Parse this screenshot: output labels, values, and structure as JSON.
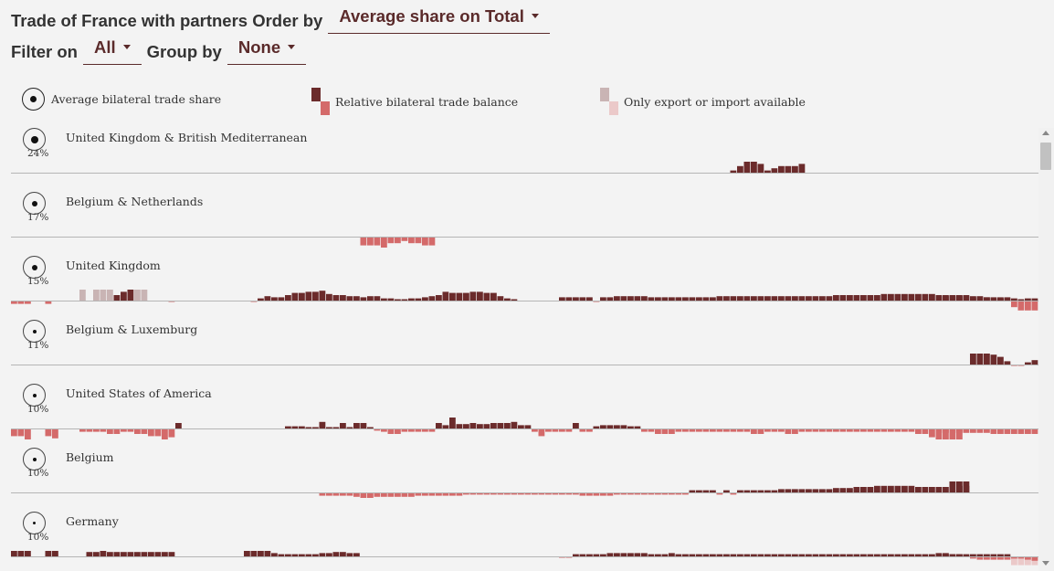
{
  "header": {
    "title": "Trade of France with partners Order by",
    "order_by": "Average share on Total",
    "filter_label": "Filter on",
    "filter_value": "All",
    "group_label": "Group by",
    "group_value": "None"
  },
  "legend": {
    "share": "Average bilateral trade share",
    "balance": "Relative bilateral trade balance",
    "partial": "Only export or import available"
  },
  "colors": {
    "positive": "#6b2b2b",
    "negative": "#d46a6a",
    "partial_pos": "#c9b4b4",
    "partial_neg": "#ebc9c9",
    "baseline": "#b5b5b5"
  },
  "chart_data": {
    "type": "bar",
    "description_of_values": "relative bilateral trade balance per year, range -1..1; null = no data; p = partial (only export or import available)",
    "ylim": [
      -1,
      1
    ],
    "partners": [
      {
        "name": "United Kingdom & British Mediterranean",
        "share": "24%",
        "dot": 8,
        "segments": [
          {
            "start": 105,
            "values": [
              0.2,
              0.6,
              1.0,
              1.0,
              0.8,
              0.2,
              0.4,
              0.6,
              0.6,
              0.6,
              0.8
            ]
          }
        ]
      },
      {
        "name": "Belgium & Netherlands",
        "share": "17%",
        "dot": 6,
        "segments": [
          {
            "start": 51,
            "values": [
              -0.8,
              -0.8,
              -0.8,
              -1.0,
              -0.6,
              -0.6,
              -0.4,
              -0.6,
              -0.6,
              -0.8,
              -0.8
            ]
          }
        ]
      },
      {
        "name": "United Kingdom",
        "share": "15%",
        "dot": 6,
        "segments": [
          {
            "start": 0,
            "values": [
              -0.3,
              -0.3,
              -0.3,
              null,
              null,
              -0.3
            ]
          },
          {
            "start": 10,
            "values": [
              {
                "v": 1.0,
                "p": true
              },
              null,
              {
                "v": 1.0,
                "p": true
              },
              {
                "v": 1.0,
                "p": true
              },
              {
                "v": 1.0,
                "p": true
              },
              0.5,
              0.8,
              1.0,
              {
                "v": 1.0,
                "p": true
              },
              {
                "v": 1.0,
                "p": true
              }
            ]
          },
          {
            "start": 23,
            "values": [
              -0.1
            ]
          },
          {
            "start": 35,
            "values": [
              -0.1,
              0.2,
              0.4,
              0.3,
              0.3,
              0.5,
              0.7,
              0.7,
              0.8,
              0.8,
              0.9,
              0.6,
              0.5,
              0.5,
              0.4,
              0.4,
              0.3,
              0.4,
              0.4,
              0.2,
              0.2,
              0.1,
              0.1,
              0.2,
              0.2,
              0.3,
              0.4,
              0.5,
              0.8,
              0.7,
              0.7,
              0.7,
              0.8,
              0.8,
              0.7,
              0.7,
              0.4,
              0.2,
              0.1
            ]
          },
          {
            "start": 80,
            "values": [
              0.3,
              0.3,
              0.3,
              0.3,
              0.3,
              -0.1,
              0.3,
              0.3,
              0.4,
              0.4,
              0.4,
              0.4,
              0.4,
              0.3,
              0.3,
              0.3,
              0.3,
              0.3,
              0.3,
              0.3,
              0.3,
              0.3,
              0.3,
              0.4,
              0.4,
              0.4,
              0.4,
              0.4,
              0.4,
              0.4,
              0.4,
              0.4,
              0.4,
              0.4,
              0.4,
              0.4,
              0.4,
              0.4,
              0.4,
              0.4,
              0.5,
              0.5,
              0.5,
              0.5,
              0.5,
              0.5,
              0.5,
              0.6,
              0.6,
              0.6,
              0.6,
              0.6,
              0.6,
              0.6,
              0.6,
              0.5,
              0.5,
              0.5,
              0.5,
              0.5,
              0.4,
              0.4,
              0.3,
              0.3,
              0.3,
              0.3,
              -0.6,
              -0.9,
              -0.9,
              -0.9,
              -0.9
            ]
          },
          {
            "start": 135,
            "values": [
              0.4,
              0.4,
              0.4,
              0.4,
              0.4,
              0.3,
              0.3,
              0.3,
              0.1,
              0.2,
              0.2,
              0.2,
              0.1,
              0.2,
              0.2,
              0.2
            ]
          }
        ]
      },
      {
        "name": "Belgium & Luxemburg",
        "share": "11%",
        "dot": 4,
        "segments": [
          {
            "start": 140,
            "values": [
              1.0,
              1.0,
              1.0,
              0.9,
              0.7,
              0.3,
              -0.1,
              -0.1,
              0.2,
              0.4,
              0.4,
              0.2
            ]
          }
        ]
      },
      {
        "name": "United States of America",
        "share": "10%",
        "dot": 4,
        "segments": [
          {
            "start": 0,
            "values": [
              -0.7,
              -0.7,
              -1.0,
              null,
              null,
              -0.7,
              -0.9
            ]
          },
          {
            "start": 10,
            "values": [
              -0.3,
              -0.3,
              -0.3,
              -0.3,
              -0.5,
              -0.5,
              -0.3,
              -0.3,
              -0.5,
              -0.5,
              -0.7,
              -0.7,
              -1.0,
              -0.8,
              0.5
            ]
          },
          {
            "start": 40,
            "values": [
              0.2,
              0.2,
              0.2,
              0.1,
              0.1,
              0.6,
              0.1,
              0.1,
              0.5,
              0.1,
              0.5,
              0.5,
              0.1,
              -0.2,
              -0.3,
              -0.5,
              -0.5,
              -0.3,
              -0.3,
              -0.3,
              -0.3,
              -0.3,
              0.5,
              0.3,
              1.0,
              0.4,
              0.4,
              0.5,
              0.4,
              0.4,
              0.5,
              0.5,
              0.5,
              0.6,
              0.3,
              0.3,
              -0.3,
              -0.7,
              -0.3,
              -0.3,
              -0.3,
              -0.3,
              0.5,
              -0.3,
              -0.3,
              0.2,
              0.3,
              0.3,
              0.3,
              0.3,
              0.2,
              0.2,
              -0.3,
              -0.3,
              -0.5,
              -0.5,
              -0.5,
              -0.3,
              -0.3,
              -0.3,
              -0.3,
              -0.3,
              -0.3,
              -0.3,
              -0.3,
              -0.3,
              -0.3,
              -0.3,
              -0.5,
              -0.5,
              -0.3,
              -0.3,
              -0.3,
              -0.5,
              -0.5,
              -0.3,
              -0.3,
              -0.3,
              -0.3,
              -0.3,
              -0.3,
              -0.3,
              -0.3,
              -0.3,
              -0.3,
              -0.3,
              -0.3,
              -0.3,
              -0.3,
              -0.3,
              -0.3,
              -0.3,
              -0.5,
              -0.5,
              -0.8,
              -1.0,
              -1.0,
              -1.0,
              -1.0
            ]
          },
          {
            "start": 135,
            "values": [
              -0.4,
              -0.4,
              -0.4,
              -0.4,
              -0.4,
              -0.4,
              -0.4,
              -0.4,
              -0.5,
              -0.5,
              -0.5,
              -0.5,
              -0.5,
              -0.5,
              -0.5,
              -0.5
            ]
          }
        ]
      },
      {
        "name": "Belgium",
        "share": "10%",
        "dot": 4,
        "segments": [
          {
            "start": 45,
            "values": [
              -0.3,
              -0.3,
              -0.3,
              -0.3,
              -0.3,
              -0.4,
              -0.5,
              -0.5,
              -0.4,
              -0.4,
              -0.4,
              -0.4,
              -0.4,
              -0.4,
              -0.3,
              -0.3,
              -0.3,
              -0.3,
              -0.3,
              -0.3,
              -0.3,
              -0.2,
              -0.2,
              -0.2,
              -0.2,
              -0.2,
              -0.2,
              -0.2,
              -0.2,
              -0.2,
              -0.2,
              -0.2,
              -0.2,
              -0.2,
              -0.2,
              -0.2,
              -0.2,
              -0.2,
              -0.3,
              -0.3,
              -0.3,
              -0.3,
              -0.3,
              -0.2,
              -0.2,
              -0.2,
              -0.2,
              -0.2,
              -0.2,
              -0.2,
              -0.2,
              -0.2,
              -0.2,
              -0.2,
              0.2,
              0.2,
              0.2,
              0.2,
              -0.2,
              0.2,
              -0.2,
              0.2,
              0.2,
              0.2,
              0.2,
              0.2,
              0.2,
              0.3,
              0.3,
              0.3,
              0.3,
              0.3,
              0.3,
              0.3,
              0.3,
              0.4,
              0.4,
              0.4,
              0.5,
              0.5,
              0.5,
              0.6,
              0.6,
              0.6,
              0.6,
              0.6,
              0.6,
              0.5,
              0.5,
              0.5,
              0.5,
              0.5,
              1.0,
              1.0,
              1.0
            ]
          },
          {
            "start": 138,
            "values": [
              0.6,
              0.6
            ]
          }
        ]
      },
      {
        "name": "Germany",
        "share": "10%",
        "dot": 3,
        "segments": [
          {
            "start": 0,
            "values": [
              0.5,
              0.5,
              0.5,
              null,
              null,
              0.5,
              0.5
            ]
          },
          {
            "start": 11,
            "values": [
              0.4,
              0.4,
              0.5,
              0.4,
              0.4,
              0.4,
              0.4,
              0.4,
              0.4,
              0.4,
              0.4,
              0.4,
              0.4
            ]
          },
          {
            "start": 34,
            "values": [
              0.5,
              0.5,
              0.5,
              0.5,
              0.3,
              0.2,
              0.2,
              0.2,
              0.2,
              0.2,
              0.2,
              0.3,
              0.3,
              0.4,
              0.4,
              0.3,
              0.3
            ]
          },
          {
            "start": 80,
            "values": [
              -0.1,
              -0.1,
              0.2,
              0.2,
              0.2,
              0.2,
              0.2,
              0.3,
              0.3,
              0.3,
              0.3,
              0.3,
              0.3,
              0.2,
              0.2,
              0.2,
              0.3,
              0.2,
              0.2,
              0.2,
              0.2,
              0.2,
              0.2,
              0.2,
              0.2,
              0.2,
              0.2,
              0.2,
              0.2,
              0.2,
              0.2,
              0.2,
              0.2,
              0.2,
              0.2,
              0.2,
              0.2,
              0.2,
              0.2,
              0.2,
              0.2,
              0.2,
              0.2,
              0.2,
              0.2,
              0.2,
              0.2,
              0.2,
              0.2,
              0.2,
              0.2,
              0.2,
              0.2,
              0.2,
              0.2,
              0.2,
              0.2,
              0.2,
              0.2,
              0.2,
              0.2,
              0.2,
              0.2,
              0.2,
              0.2,
              0.2,
              {
                "v": -0.8,
                "p": true
              },
              {
                "v": -0.8,
                "p": true
              },
              {
                "v": -0.8,
                "p": true
              },
              {
                "v": -0.8,
                "p": true
              },
              {
                "v": -0.8,
                "p": true
              }
            ]
          },
          {
            "start": 135,
            "values": [
              0.3,
              0.3,
              0.2,
              0.2,
              0.1,
              -0.2,
              -0.3,
              -0.3,
              -0.3,
              -0.3,
              -0.3,
              -0.2,
              -0.2,
              -0.3,
              -0.4,
              -0.3
            ]
          }
        ]
      }
    ]
  }
}
